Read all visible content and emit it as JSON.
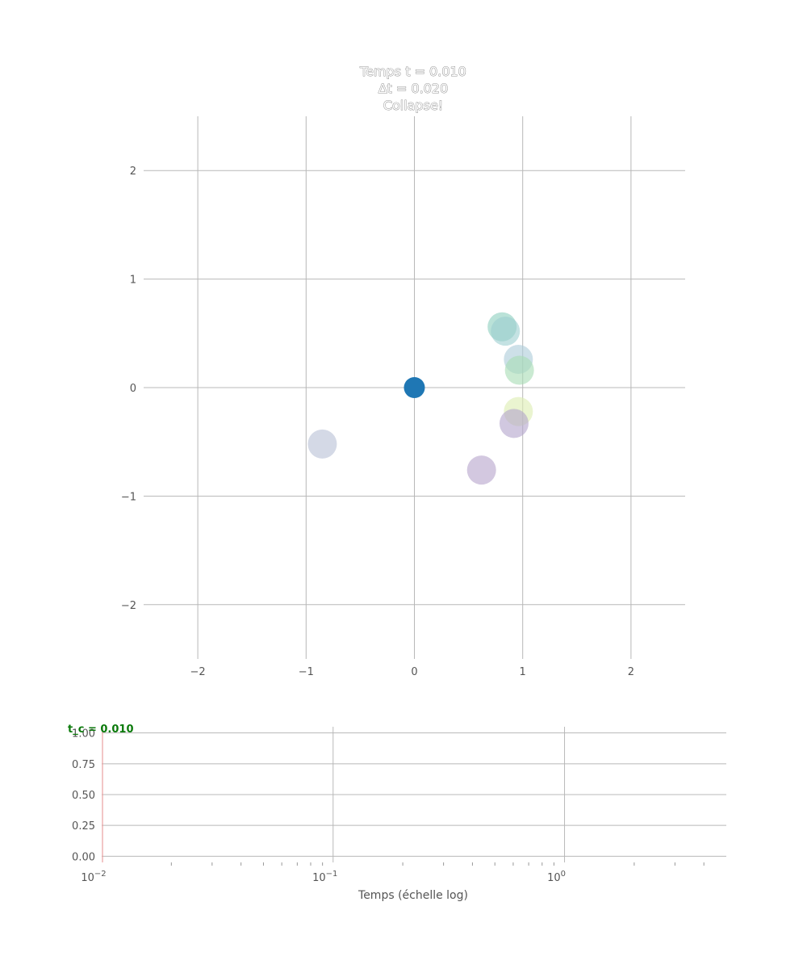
{
  "chart_data": [
    {
      "type": "scatter",
      "title_lines": [
        "Temps t = 0.010",
        "Δt = 0.020",
        "Collapse!"
      ],
      "xlim": [
        -2.5,
        2.5
      ],
      "ylim": [
        -2.5,
        2.5
      ],
      "xticks": [
        -2,
        -1,
        0,
        1,
        2
      ],
      "yticks": [
        -2,
        -1,
        0,
        1,
        2
      ],
      "xtick_labels": [
        "−2",
        "−1",
        "0",
        "1",
        "2"
      ],
      "ytick_labels": [
        "−2",
        "−1",
        "0",
        "1",
        "2"
      ],
      "grid": true,
      "center_point": {
        "x": 0.0,
        "y": 0.0,
        "color": "#1f77b4"
      },
      "points": [
        {
          "x": 0.81,
          "y": 0.56,
          "color": "#8ccfbe"
        },
        {
          "x": 0.84,
          "y": 0.52,
          "color": "#9ccfd0"
        },
        {
          "x": 0.96,
          "y": 0.26,
          "color": "#acccd8"
        },
        {
          "x": 0.97,
          "y": 0.16,
          "color": "#a6dcb4"
        },
        {
          "x": 0.96,
          "y": -0.22,
          "color": "#dcecb0"
        },
        {
          "x": 0.92,
          "y": -0.33,
          "color": "#b3a3cc"
        },
        {
          "x": 0.62,
          "y": -0.76,
          "color": "#b6a3cc"
        },
        {
          "x": -0.85,
          "y": -0.52,
          "color": "#b8bfd6"
        }
      ]
    },
    {
      "type": "line",
      "xscale": "log",
      "xlim": [
        0.01,
        5.0
      ],
      "ylim": [
        -0.05,
        1.05
      ],
      "yticks": [
        0.0,
        0.25,
        0.5,
        0.75,
        1.0
      ],
      "ytick_labels": [
        "0.00",
        "0.25",
        "0.50",
        "0.75",
        "1.00"
      ],
      "xtick_major": [
        {
          "value": 0.01,
          "base": "10",
          "exp": "−2"
        },
        {
          "value": 0.1,
          "base": "10",
          "exp": "−1"
        },
        {
          "value": 1.0,
          "base": "10",
          "exp": "0"
        }
      ],
      "xlabel": "Temps (échelle log)",
      "grid": true,
      "vline": {
        "x": 0.01,
        "color": "#e8a0a0"
      },
      "annotation": "t_c = 0.010",
      "annotation_color": "#0b7a0b"
    }
  ]
}
